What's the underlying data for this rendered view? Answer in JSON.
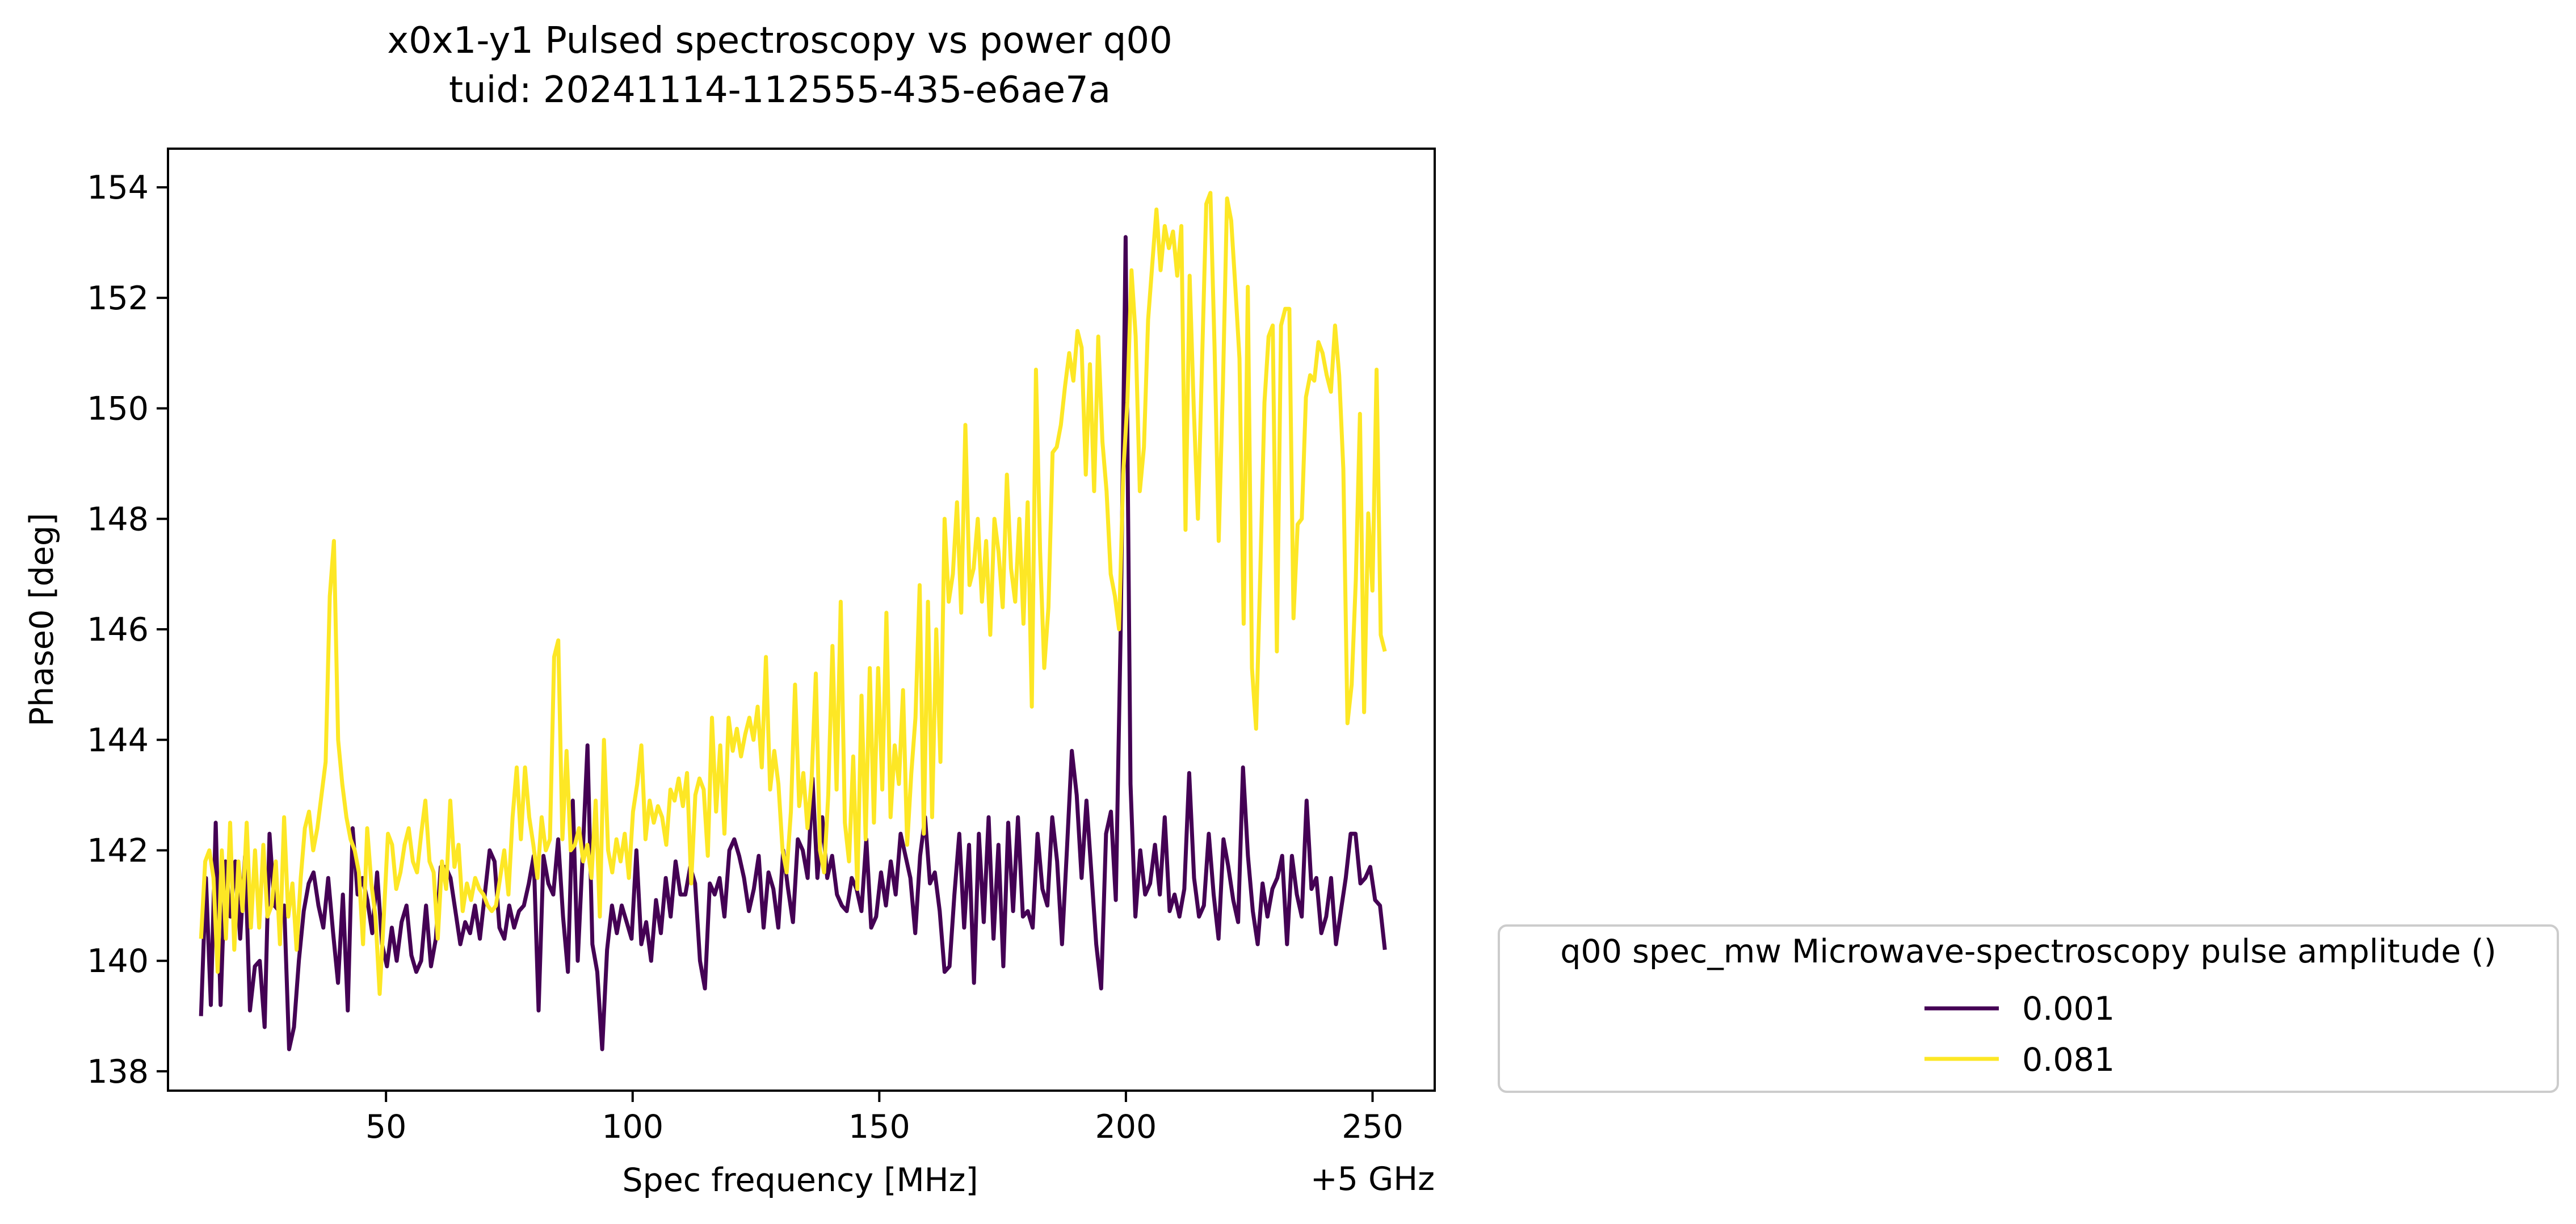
{
  "chart_data": {
    "type": "line",
    "title": "x0x1-y1 Pulsed spectroscopy vs power q00",
    "subtitle": "tuid: 20241114-112555-435-e6ae7a",
    "xlabel": "Spec frequency [MHz]",
    "x_offset_label": "+5 GHz",
    "ylabel": "Phase0 [deg]",
    "xlim": [
      5.8,
      262.6
    ],
    "ylim": [
      137.65,
      154.7
    ],
    "xticks": [
      50,
      100,
      150,
      200,
      250
    ],
    "yticks": [
      138,
      140,
      142,
      144,
      146,
      148,
      150,
      152,
      154
    ],
    "grid": false,
    "legend": {
      "title": "q00 spec_mw Microwave-spectroscopy pulse amplitude ()",
      "placement": "outside-right-bottom"
    },
    "x_start": 12.5,
    "x_end": 252.5,
    "series": [
      {
        "name": "0.001",
        "color": "#440154",
        "y": [
          139.0,
          141.5,
          139.2,
          142.5,
          139.2,
          141.8,
          140.8,
          141.8,
          140.4,
          141.9,
          139.1,
          139.9,
          140.0,
          138.8,
          142.3,
          141.0,
          140.9,
          141.0,
          138.4,
          138.8,
          140.0,
          140.9,
          141.4,
          141.6,
          141.0,
          140.6,
          141.5,
          140.5,
          139.6,
          141.2,
          139.1,
          142.4,
          141.2,
          141.5,
          141.1,
          140.5,
          141.6,
          140.3,
          139.9,
          140.6,
          140.0,
          140.7,
          141.0,
          140.1,
          139.8,
          140.0,
          141.0,
          139.9,
          140.4,
          141.7,
          141.7,
          141.5,
          140.9,
          140.3,
          140.7,
          140.5,
          141.0,
          140.4,
          141.2,
          142.0,
          141.8,
          140.6,
          140.4,
          141.0,
          140.6,
          140.9,
          141.0,
          141.4,
          141.9,
          139.1,
          141.9,
          141.4,
          141.2,
          142.2,
          140.8,
          139.8,
          142.9,
          140.0,
          141.9,
          143.9,
          140.3,
          139.8,
          138.4,
          140.2,
          141.0,
          140.5,
          141.0,
          140.7,
          140.4,
          142.0,
          140.3,
          140.7,
          140.0,
          141.1,
          140.5,
          141.5,
          140.8,
          141.8,
          141.2,
          141.2,
          141.7,
          141.4,
          140.0,
          139.5,
          141.4,
          141.2,
          141.5,
          140.8,
          142.0,
          142.2,
          141.9,
          141.5,
          140.9,
          141.3,
          141.9,
          140.6,
          141.6,
          141.3,
          140.6,
          142.0,
          141.3,
          140.7,
          142.2,
          142.0,
          141.5,
          143.3,
          141.5,
          142.6,
          141.5,
          141.9,
          141.2,
          141.0,
          140.9,
          141.5,
          141.3,
          140.9,
          142.2,
          140.6,
          140.8,
          141.6,
          141.0,
          141.8,
          141.2,
          142.3,
          141.9,
          141.5,
          140.5,
          141.9,
          142.6,
          141.4,
          141.6,
          140.9,
          139.8,
          139.9,
          141.2,
          142.3,
          140.6,
          142.1,
          139.6,
          142.3,
          140.7,
          142.6,
          140.4,
          142.1,
          139.9,
          142.5,
          140.9,
          142.6,
          140.8,
          140.9,
          140.6,
          142.3,
          141.3,
          141.0,
          142.6,
          141.8,
          140.3,
          142.0,
          143.8,
          143.0,
          141.5,
          142.9,
          141.6,
          140.3,
          139.5,
          142.3,
          142.7,
          141.1,
          146.0,
          153.1,
          143.2,
          140.8,
          142.0,
          141.2,
          141.4,
          142.1,
          141.2,
          142.6,
          140.9,
          141.2,
          140.8,
          141.3,
          143.4,
          141.5,
          140.8,
          141.0,
          142.3,
          141.2,
          140.4,
          142.2,
          141.7,
          141.1,
          140.7,
          143.5,
          141.9,
          140.9,
          140.3,
          141.4,
          140.8,
          141.3,
          141.5,
          141.9,
          140.3,
          141.9,
          141.2,
          140.8,
          142.9,
          141.3,
          141.5,
          140.5,
          140.8,
          141.5,
          140.3,
          140.9,
          141.5,
          142.3,
          142.3,
          141.4,
          141.5,
          141.7,
          141.1,
          141.0,
          140.2
        ]
      },
      {
        "name": "0.081",
        "color": "#fde725",
        "y": [
          140.4,
          141.8,
          142.0,
          141.5,
          139.8,
          142.0,
          140.4,
          142.5,
          140.2,
          141.8,
          140.9,
          142.5,
          140.6,
          142.0,
          140.6,
          142.1,
          140.8,
          141.0,
          141.8,
          140.3,
          142.6,
          140.8,
          141.4,
          140.2,
          141.5,
          142.4,
          142.7,
          142.0,
          142.4,
          143.0,
          143.6,
          146.6,
          147.6,
          144.0,
          143.2,
          142.6,
          142.2,
          142.0,
          141.6,
          140.3,
          142.4,
          141.4,
          140.8,
          139.4,
          140.8,
          142.3,
          142.1,
          141.3,
          141.6,
          142.1,
          142.4,
          141.8,
          141.6,
          142.3,
          142.9,
          141.8,
          141.6,
          140.4,
          141.8,
          141.3,
          142.9,
          141.7,
          142.1,
          140.9,
          141.4,
          141.1,
          141.5,
          141.3,
          141.2,
          141.0,
          140.9,
          141.0,
          141.5,
          142.0,
          141.2,
          142.6,
          143.5,
          142.2,
          143.5,
          142.6,
          142.1,
          141.5,
          142.6,
          142.0,
          142.2,
          145.5,
          145.8,
          142.2,
          143.8,
          142.0,
          142.1,
          142.4,
          141.8,
          142.1,
          141.5,
          142.9,
          140.8,
          144.0,
          142.0,
          141.6,
          142.2,
          141.8,
          142.3,
          141.5,
          142.7,
          143.2,
          143.9,
          142.2,
          142.9,
          142.5,
          142.8,
          142.6,
          142.1,
          143.1,
          142.9,
          143.3,
          142.8,
          143.4,
          141.4,
          143.0,
          143.3,
          143.1,
          141.9,
          144.4,
          142.7,
          143.9,
          142.3,
          144.4,
          143.8,
          144.2,
          143.7,
          144.1,
          144.4,
          144.0,
          144.6,
          143.5,
          145.5,
          143.1,
          143.8,
          143.2,
          142.0,
          141.6,
          142.7,
          145.0,
          142.8,
          143.4,
          142.4,
          143.3,
          145.2,
          142.0,
          141.6,
          143.0,
          145.7,
          143.1,
          146.5,
          142.5,
          141.8,
          143.7,
          141.3,
          144.8,
          142.2,
          145.3,
          142.5,
          145.3,
          143.1,
          146.3,
          142.6,
          143.9,
          143.2,
          144.9,
          142.1,
          143.4,
          144.4,
          146.8,
          142.3,
          146.5,
          142.6,
          146.0,
          143.6,
          148.0,
          146.5,
          147.0,
          148.3,
          146.3,
          149.7,
          146.8,
          147.1,
          148.0,
          146.5,
          147.6,
          145.9,
          148.0,
          147.4,
          146.4,
          148.8,
          147.1,
          146.5,
          148.0,
          146.1,
          148.3,
          144.6,
          150.7,
          147.4,
          145.3,
          146.4,
          149.2,
          149.3,
          149.7,
          150.4,
          151.0,
          150.5,
          151.4,
          151.1,
          148.8,
          150.8,
          148.5,
          151.3,
          149.4,
          148.5,
          147.0,
          146.6,
          146.0,
          148.8,
          150.1,
          152.5,
          151.3,
          148.5,
          149.3,
          151.6,
          152.6,
          153.6,
          152.5,
          153.3,
          152.9,
          153.2,
          152.4,
          153.3,
          147.8,
          152.4,
          150.0,
          148.0,
          150.9,
          153.7,
          153.9,
          151.1,
          147.6,
          150.4,
          153.8,
          153.4,
          152.2,
          150.9,
          146.1,
          152.2,
          145.3,
          144.2,
          147.0,
          150.1,
          151.3,
          151.5,
          145.6,
          151.5,
          151.8,
          151.8,
          146.2,
          147.9,
          148.0,
          150.2,
          150.6,
          150.5,
          151.2,
          151.0,
          150.6,
          150.3,
          151.5,
          150.6,
          148.9,
          144.3,
          145.0,
          146.9,
          149.9,
          144.5,
          148.1,
          146.7,
          150.7,
          145.9,
          145.6
        ]
      }
    ]
  }
}
